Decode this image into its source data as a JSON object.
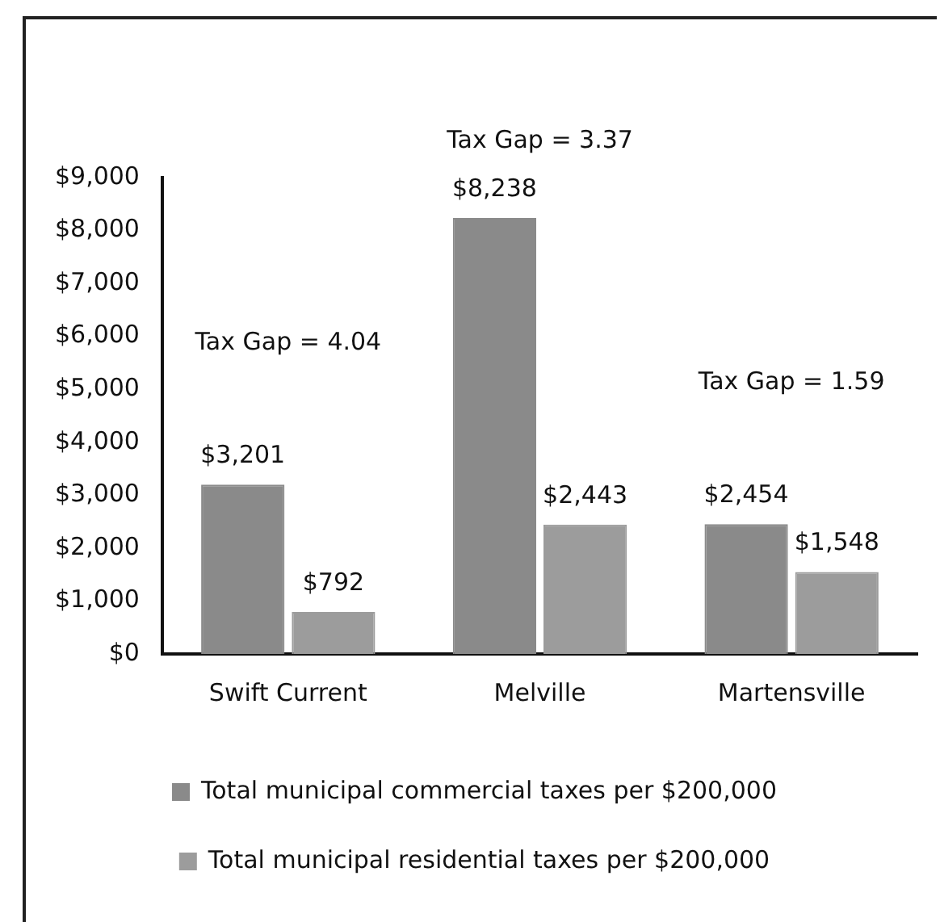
{
  "chart_data": {
    "type": "bar",
    "categories": [
      "Swift Current",
      "Melville",
      "Martensville"
    ],
    "series": [
      {
        "name": "Total municipal commercial taxes per $200,000",
        "color": "#8a8a8a",
        "values": [
          3201,
          8238,
          2454
        ]
      },
      {
        "name": "Total municipal residential taxes per $200,000",
        "color": "#9c9c9c",
        "values": [
          792,
          2443,
          1548
        ]
      }
    ],
    "ylim": [
      0,
      9000
    ],
    "yticks": [
      {
        "value": 0,
        "label": "$0"
      },
      {
        "value": 1000,
        "label": "$1,000"
      },
      {
        "value": 2000,
        "label": "$2,000"
      },
      {
        "value": 3000,
        "label": "$3,000"
      },
      {
        "value": 4000,
        "label": "$4,000"
      },
      {
        "value": 5000,
        "label": "$5,000"
      },
      {
        "value": 6000,
        "label": "$6,000"
      },
      {
        "value": 7000,
        "label": "$7,000"
      },
      {
        "value": 8000,
        "label": "$8,000"
      },
      {
        "value": 9000,
        "label": "$9,000"
      }
    ],
    "value_labels": [
      [
        "$3,201",
        "$8,238",
        "$2,454"
      ],
      [
        "$792",
        "$2,443",
        "$1,548"
      ]
    ],
    "annotations": [
      "Tax Gap = 4.04",
      "Tax Gap = 3.37",
      "Tax Gap = 1.59"
    ],
    "grid": false,
    "legend": "bottom"
  }
}
